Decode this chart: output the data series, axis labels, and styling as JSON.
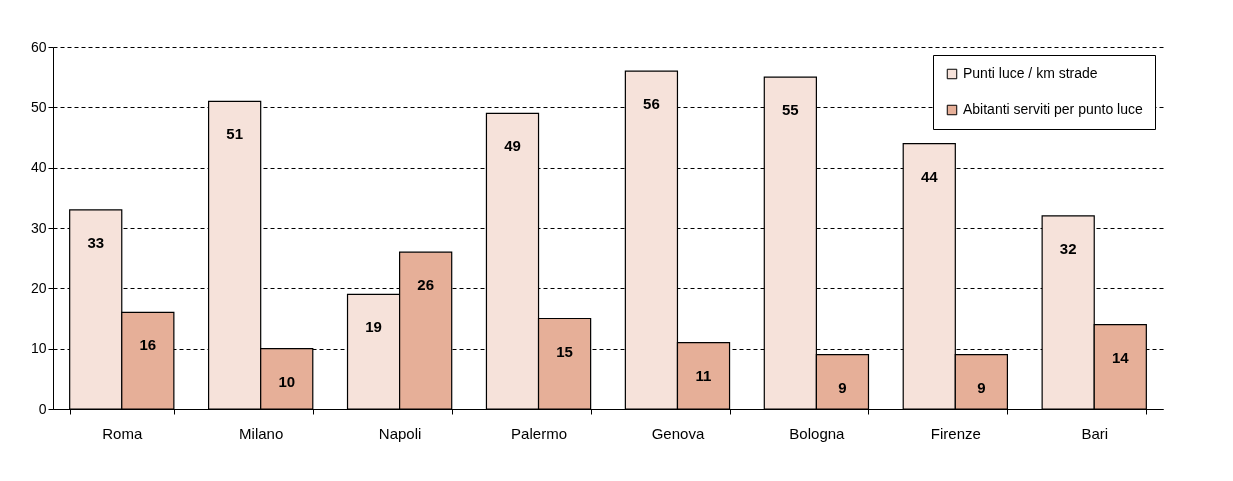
{
  "chart_data": {
    "type": "bar",
    "categories": [
      "Roma",
      "Milano",
      "Napoli",
      "Palermo",
      "Genova",
      "Bologna",
      "Firenze",
      "Bari"
    ],
    "series": [
      {
        "name": "Punti luce / km strade",
        "color": "#f6e2da",
        "values": [
          33,
          51,
          19,
          49,
          56,
          55,
          44,
          32
        ]
      },
      {
        "name": "Abitanti serviti per punto luce",
        "color": "#e6af98",
        "values": [
          16,
          10,
          26,
          15,
          11,
          9,
          9,
          14
        ]
      }
    ],
    "ylim": [
      0,
      60
    ],
    "yticks": [
      0,
      10,
      20,
      30,
      40,
      50,
      60
    ],
    "grid": "y",
    "legend": "top right",
    "data_labels": true
  }
}
